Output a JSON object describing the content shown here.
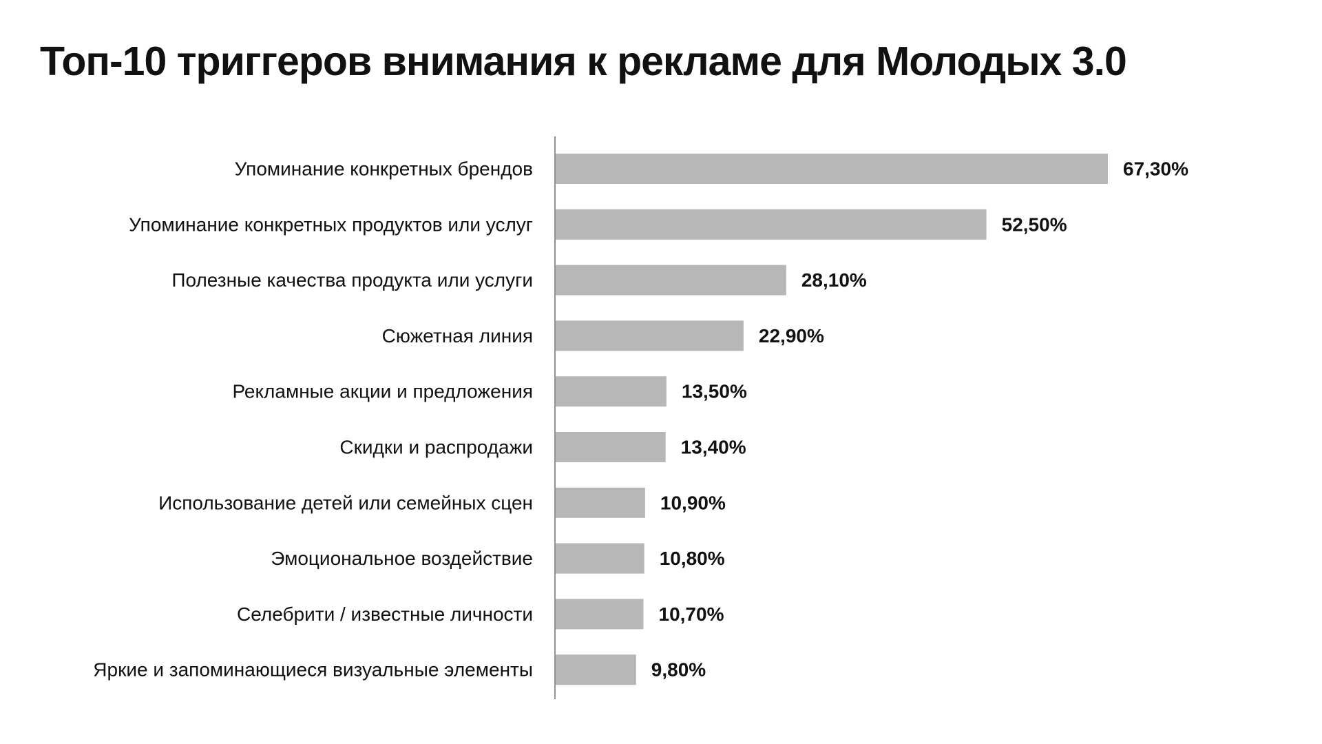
{
  "header": {
    "title": "Топ-10 триггеров внимания к рекламе для Молодых 3.0"
  },
  "chart_data": {
    "type": "bar",
    "orientation": "horizontal",
    "title": "Топ-10 триггеров внимания к рекламе для Молодых 3.0",
    "categories": [
      "Упоминание конкретных брендов",
      "Упоминание конкретных продуктов или услуг",
      "Полезные качества продукта или услуги",
      "Сюжетная линия",
      "Рекламные акции и предложения",
      "Скидки и распродажи",
      "Использование детей или семейных сцен",
      "Эмоциональное воздействие",
      "Селебрити / известные личности",
      "Яркие и запоминающиеся визуальные элементы"
    ],
    "values": [
      67.3,
      52.5,
      28.1,
      22.9,
      13.5,
      13.4,
      10.9,
      10.8,
      10.7,
      9.8
    ],
    "value_labels": [
      "67,30%",
      "52,50%",
      "28,10%",
      "22,90%",
      "13,50%",
      "13,40%",
      "10,90%",
      "10,80%",
      "10,70%",
      "9,80%"
    ],
    "xlim": [
      0,
      100
    ],
    "grid": false,
    "legend": "none",
    "colors": {
      "bar": "#b7b7b7",
      "axis": "#6f6f6f",
      "text": "#111111"
    }
  }
}
